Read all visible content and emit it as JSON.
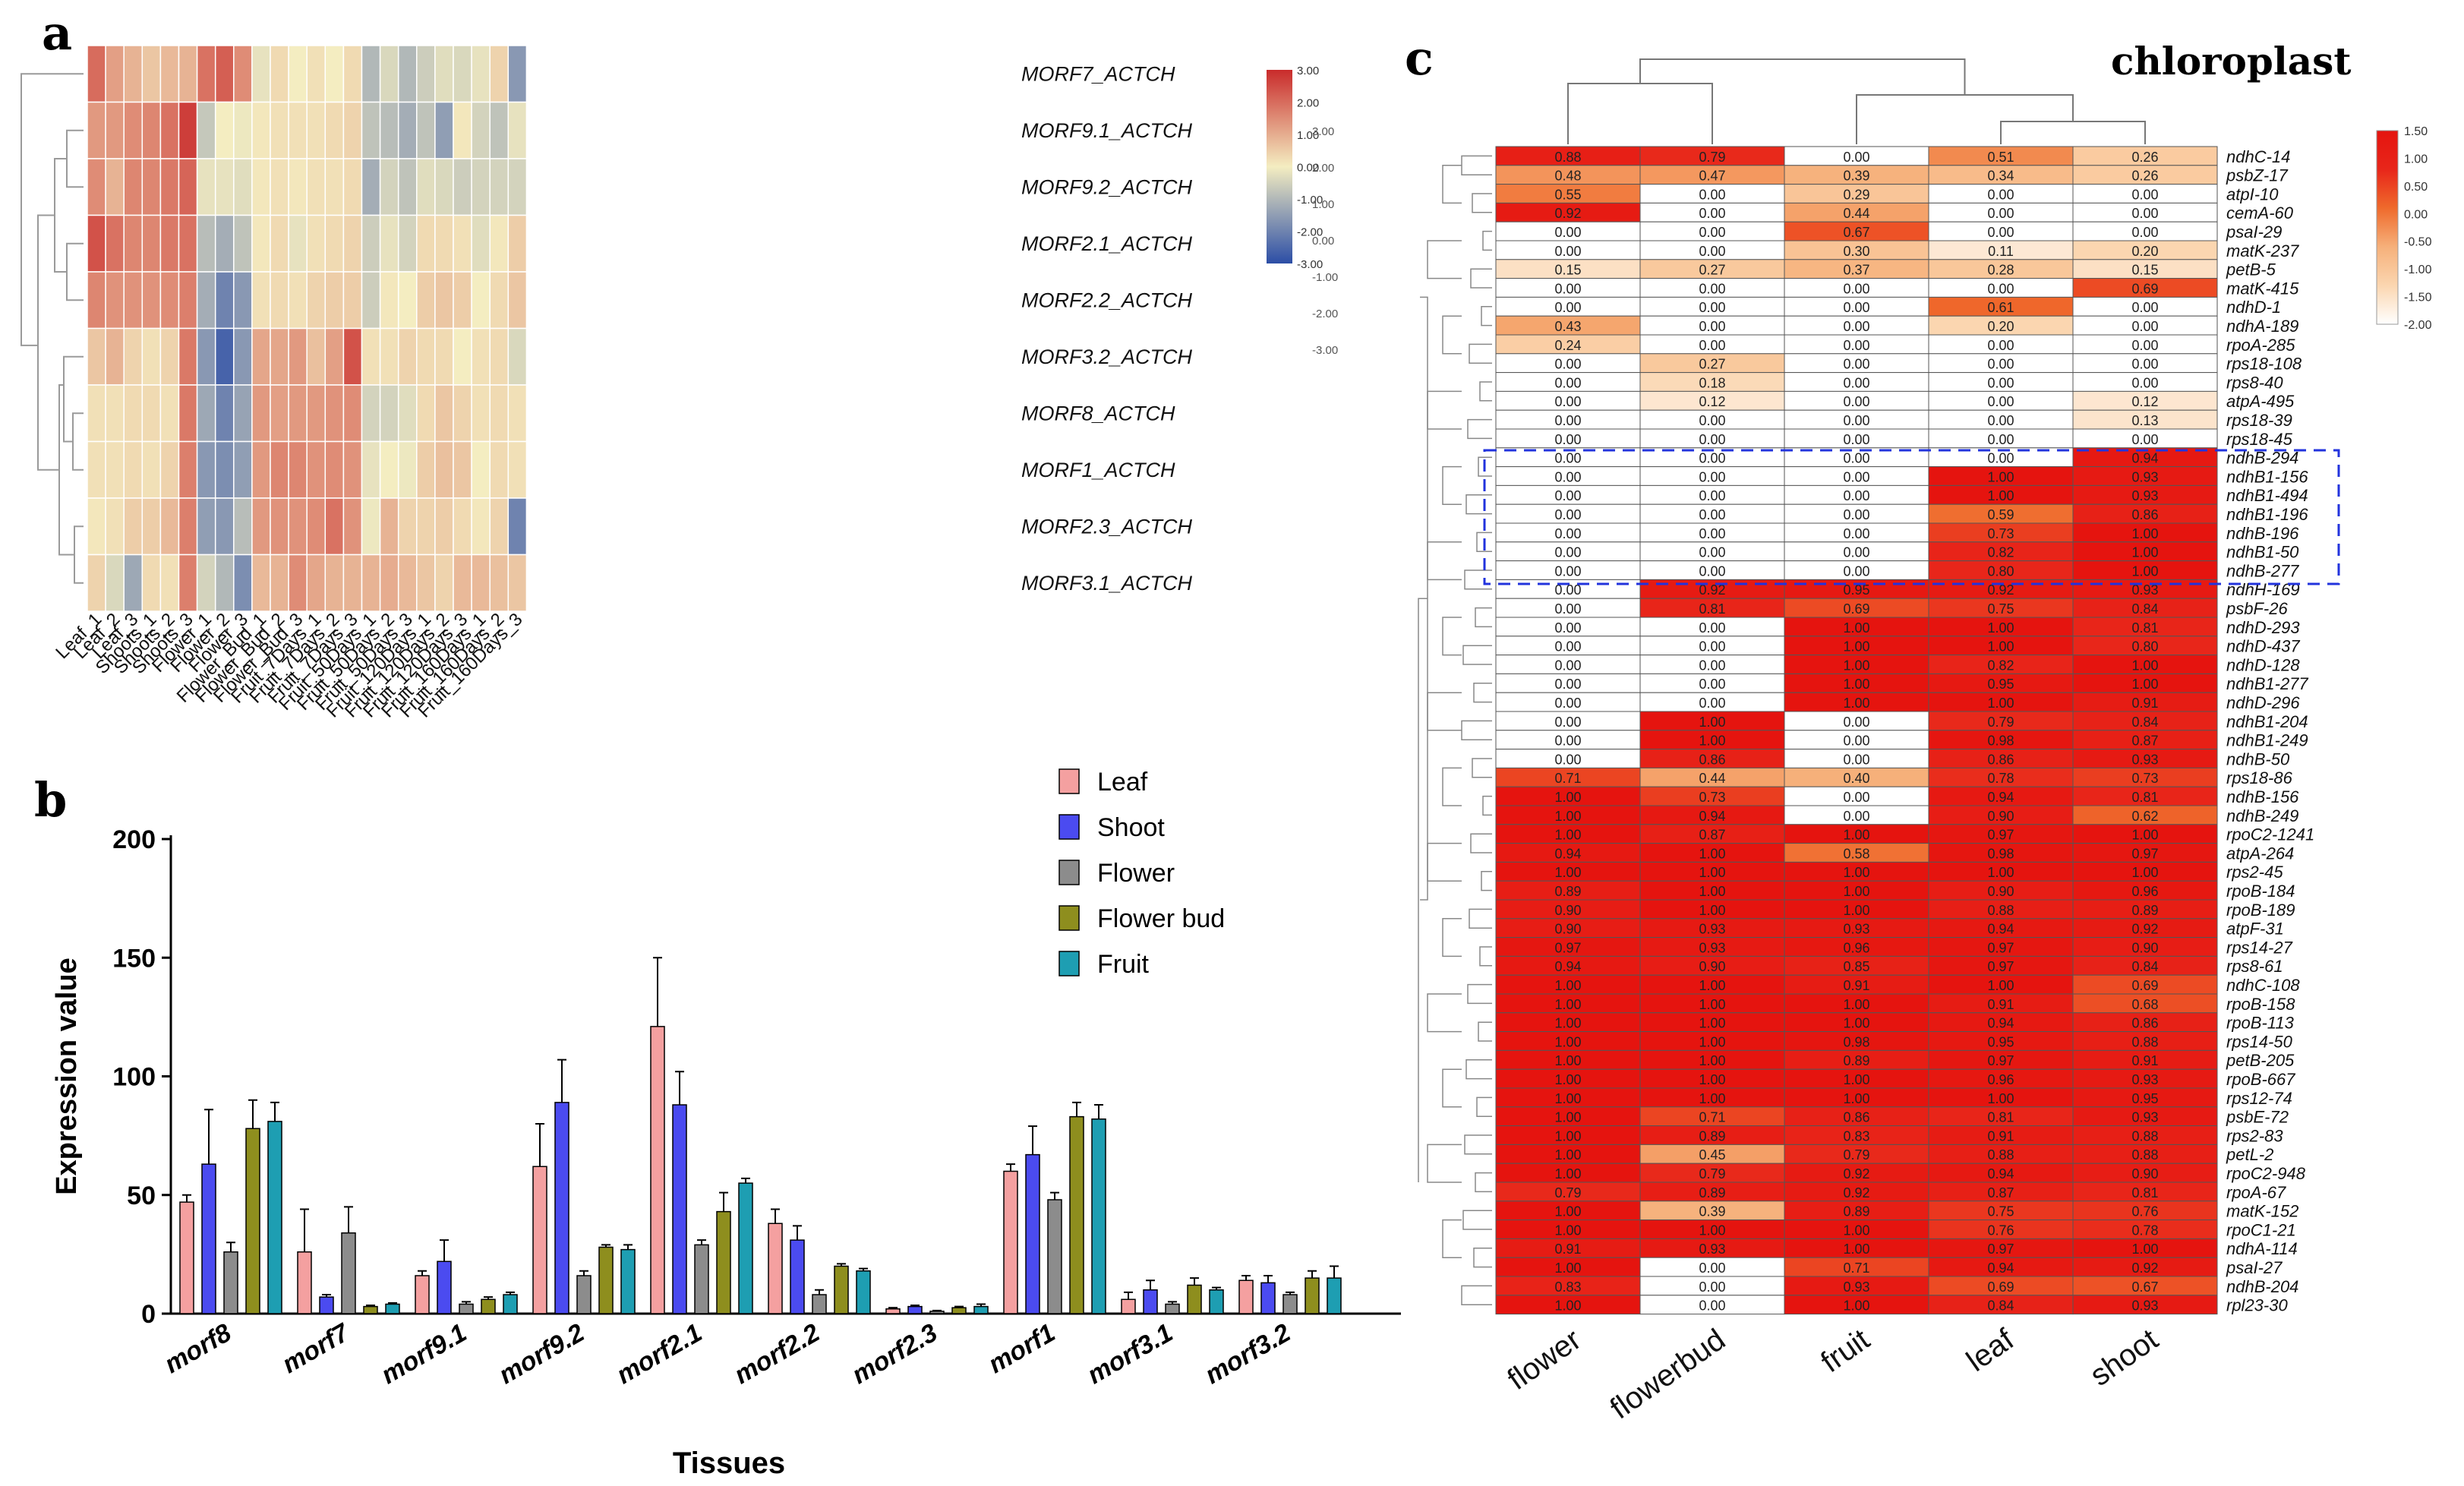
{
  "panel_labels": {
    "a": "a",
    "b": "b",
    "c": "c"
  },
  "chart_data": [
    {
      "type": "heatmap",
      "panel": "a",
      "row_labels": [
        "MORF7_ACTCH",
        "MORF9.1_ACTCH",
        "MORF9.2_ACTCH",
        "MORF2.1_ACTCH",
        "MORF2.2_ACTCH",
        "MORF3.2_ACTCH",
        "MORF8_ACTCH",
        "MORF1_ACTCH",
        "MORF2.3_ACTCH",
        "MORF3.1_ACTCH"
      ],
      "col_labels": [
        "Leaf_1",
        "Leaf_2",
        "Leaf_3",
        "Shoots_1",
        "Shoots_2",
        "Shoots_3",
        "Flower_1",
        "Flower_2",
        "Flower_3",
        "Flower_Bud_1",
        "Flower_Bud_2",
        "Flower_Bud_3",
        "Fruit_7Days_1",
        "Fruit_7Days_2",
        "Fruit_7Days_3",
        "Fruit_50Days_1",
        "Fruit_50Days_2",
        "Fruit_50Days_3",
        "Fruit_120Days_1",
        "Fruit_120Days_2",
        "Fruit_120Days_3",
        "Fruit_160Days_1",
        "Fruit_160Days_2",
        "Fruit_160Days_3"
      ],
      "values": [
        [
          2.0,
          1.2,
          0.9,
          0.6,
          0.8,
          0.9,
          1.9,
          2.2,
          1.5,
          -0.2,
          0.3,
          0.0,
          0.2,
          0.0,
          0.3,
          -1.0,
          -0.4,
          -1.0,
          -0.6,
          -0.3,
          -0.4,
          -0.2,
          0.4,
          -1.6
        ],
        [
          1.3,
          1.3,
          1.5,
          1.6,
          1.9,
          2.7,
          -0.7,
          0.0,
          -0.1,
          0.1,
          0.2,
          0.2,
          0.2,
          0.3,
          0.4,
          -0.8,
          -0.9,
          -1.2,
          -0.8,
          -1.5,
          0.1,
          -0.5,
          -0.8,
          -0.2
        ],
        [
          1.5,
          0.9,
          1.6,
          1.6,
          1.8,
          2.1,
          -0.2,
          -0.2,
          -0.3,
          0.1,
          0.2,
          0.1,
          0.2,
          0.2,
          0.3,
          -1.2,
          -0.5,
          -0.8,
          -0.3,
          -0.4,
          -0.6,
          -0.5,
          -0.5,
          -0.5
        ],
        [
          2.4,
          1.9,
          1.6,
          1.6,
          1.8,
          1.9,
          -0.9,
          -1.2,
          -0.8,
          0.1,
          0.3,
          -0.2,
          0.2,
          0.3,
          0.4,
          -0.6,
          -0.2,
          -0.5,
          0.3,
          0.3,
          0.2,
          -0.3,
          0.1,
          0.5
        ],
        [
          1.6,
          1.4,
          1.4,
          1.4,
          1.5,
          1.7,
          -1.2,
          -2.0,
          -1.6,
          0.2,
          0.3,
          0.2,
          0.4,
          0.5,
          0.5,
          -0.6,
          0.1,
          0.0,
          0.5,
          0.6,
          0.5,
          0.0,
          0.3,
          0.6
        ],
        [
          0.6,
          0.9,
          0.4,
          0.2,
          0.4,
          1.8,
          -1.6,
          -2.6,
          -1.6,
          1.1,
          1.1,
          1.3,
          0.7,
          1.2,
          2.4,
          0.2,
          0.2,
          0.4,
          0.3,
          0.3,
          0.0,
          0.2,
          0.3,
          -0.4
        ],
        [
          0.2,
          0.2,
          0.3,
          0.3,
          0.2,
          1.8,
          -1.3,
          -2.0,
          -1.4,
          1.3,
          1.2,
          1.3,
          1.3,
          1.4,
          1.5,
          -0.5,
          -0.5,
          -0.3,
          0.3,
          0.6,
          0.4,
          0.2,
          0.3,
          0.2
        ],
        [
          0.2,
          0.2,
          0.3,
          0.2,
          0.4,
          1.7,
          -1.6,
          -1.8,
          -1.5,
          1.3,
          1.6,
          1.6,
          1.4,
          1.5,
          1.4,
          -0.2,
          0.0,
          -0.1,
          0.5,
          0.7,
          0.6,
          0.0,
          0.3,
          0.2
        ],
        [
          0.1,
          0.2,
          0.5,
          0.5,
          0.8,
          1.7,
          -1.5,
          -1.6,
          -0.9,
          1.3,
          1.4,
          1.4,
          1.5,
          1.9,
          1.4,
          -0.1,
          0.9,
          0.4,
          0.4,
          0.5,
          0.3,
          0.1,
          0.4,
          -2.0
        ],
        [
          0.4,
          -0.4,
          -1.3,
          0.3,
          0.2,
          1.7,
          -0.5,
          -1.0,
          -1.8,
          0.8,
          0.9,
          1.5,
          1.1,
          0.9,
          0.9,
          0.9,
          1.0,
          0.8,
          0.6,
          0.4,
          0.8,
          0.8,
          0.7,
          0.6
        ]
      ],
      "color_scale": {
        "min": -3.0,
        "max": 3.0,
        "colors": [
          "#2c4ea6",
          "#f4edc1",
          "#c92b2b"
        ]
      },
      "legend_ticks": [
        "3.00",
        "2.00",
        "1.00",
        "0.00",
        "-1.00",
        "-2.00",
        "-3.00"
      ],
      "legend_ghost_ticks": [
        "3.00",
        "2.00",
        "1.00",
        "0.00",
        "-1.00",
        "-2.00",
        "-3.00"
      ]
    },
    {
      "type": "bar",
      "panel": "b",
      "categories": [
        "morf8",
        "morf7",
        "morf9.1",
        "morf9.2",
        "morf2.1",
        "morf2.2",
        "morf2.3",
        "morf1",
        "morf3.1",
        "morf3.2"
      ],
      "series": [
        {
          "name": "Leaf",
          "color": "#f4a0a0",
          "values": [
            47,
            26,
            16,
            62,
            121,
            38,
            2,
            60,
            6,
            14
          ],
          "errors": [
            3,
            18,
            2,
            18,
            29,
            6,
            0.5,
            3,
            3,
            2
          ]
        },
        {
          "name": "Shoot",
          "color": "#4b4bf0",
          "values": [
            63,
            7,
            22,
            89,
            88,
            31,
            3,
            67,
            10,
            13
          ],
          "errors": [
            23,
            1,
            9,
            18,
            14,
            6,
            0.5,
            12,
            4,
            3
          ]
        },
        {
          "name": "Flower",
          "color": "#8c8c8c",
          "values": [
            26,
            34,
            4,
            16,
            29,
            8,
            1,
            48,
            4,
            8
          ],
          "errors": [
            4,
            11,
            1,
            2,
            2,
            2,
            0.3,
            3,
            1,
            1
          ]
        },
        {
          "name": "Flower bud",
          "color": "#8e8e1e",
          "values": [
            78,
            3,
            6,
            28,
            43,
            20,
            2.5,
            83,
            12,
            15
          ],
          "errors": [
            12,
            0.5,
            1,
            1,
            8,
            1,
            0.5,
            6,
            3,
            3
          ]
        },
        {
          "name": "Fruit",
          "color": "#1e9eb2",
          "values": [
            81,
            4,
            8,
            27,
            55,
            18,
            3,
            82,
            10,
            15
          ],
          "errors": [
            8,
            0.5,
            1,
            2,
            2,
            1,
            1,
            6,
            1,
            5
          ]
        }
      ],
      "xlabel": "Tissues",
      "ylabel": "Expression value",
      "ylim": [
        0,
        200
      ],
      "yticks": [
        "0",
        "50",
        "100",
        "150",
        "200"
      ]
    },
    {
      "type": "heatmap",
      "panel": "c",
      "title": "chloroplast",
      "col_labels": [
        "flower",
        "flowerbud",
        "fruit",
        "leaf",
        "shoot"
      ],
      "row_labels": [
        "ndhC-14",
        "psbZ-17",
        "atpI-10",
        "cemA-60",
        "psaI-29",
        "matK-237",
        "petB-5",
        "matK-415",
        "ndhD-1",
        "ndhA-189",
        "rpoA-285",
        "rps18-108",
        "rps8-40",
        "atpA-495",
        "rps18-39",
        "rps18-45",
        "ndhB-294",
        "ndhB1-156",
        "ndhB1-494",
        "ndhB1-196",
        "ndhB-196",
        "ndhB1-50",
        "ndhB-277",
        "ndhH-169",
        "psbF-26",
        "ndhD-293",
        "ndhD-437",
        "ndhD-128",
        "ndhB1-277",
        "ndhD-296",
        "ndhB1-204",
        "ndhB1-249",
        "ndhB-50",
        "rps18-86",
        "ndhB-156",
        "ndhB-249",
        "rpoC2-1241",
        "atpA-264",
        "rps2-45",
        "rpoB-184",
        "rpoB-189",
        "atpF-31",
        "rps14-27",
        "rps8-61",
        "ndhC-108",
        "rpoB-158",
        "rpoB-113",
        "rps14-50",
        "petB-205",
        "rpoB-667",
        "rps12-74",
        "psbE-72",
        "rps2-83",
        "petL-2",
        "rpoC2-948",
        "rpoA-67",
        "matK-152",
        "rpoC1-21",
        "ndhA-114",
        "psaI-27",
        "ndhB-204",
        "rpl23-30"
      ],
      "values": [
        [
          0.88,
          0.79,
          0.0,
          0.51,
          0.26
        ],
        [
          0.48,
          0.47,
          0.39,
          0.34,
          0.26
        ],
        [
          0.55,
          0.0,
          0.29,
          0.0,
          0.0
        ],
        [
          0.92,
          0.0,
          0.44,
          0.0,
          0.0
        ],
        [
          0.0,
          0.0,
          0.67,
          0.0,
          0.0
        ],
        [
          0.0,
          0.0,
          0.3,
          0.11,
          0.2
        ],
        [
          0.15,
          0.27,
          0.37,
          0.28,
          0.15
        ],
        [
          0.0,
          0.0,
          0.0,
          0.0,
          0.69
        ],
        [
          0.0,
          0.0,
          0.0,
          0.61,
          0.0
        ],
        [
          0.43,
          0.0,
          0.0,
          0.2,
          0.0
        ],
        [
          0.24,
          0.0,
          0.0,
          0.0,
          0.0
        ],
        [
          0.0,
          0.27,
          0.0,
          0.0,
          0.0
        ],
        [
          0.0,
          0.18,
          0.0,
          0.0,
          0.0
        ],
        [
          0.0,
          0.12,
          0.0,
          0.0,
          0.12
        ],
        [
          0.0,
          0.0,
          0.0,
          0.0,
          0.13
        ],
        [
          0.0,
          0.0,
          0.0,
          0.0,
          0.0
        ],
        [
          0.0,
          0.0,
          0.0,
          0.0,
          0.94
        ],
        [
          0.0,
          0.0,
          0.0,
          1.0,
          0.93
        ],
        [
          0.0,
          0.0,
          0.0,
          1.0,
          0.93
        ],
        [
          0.0,
          0.0,
          0.0,
          0.59,
          0.86
        ],
        [
          0.0,
          0.0,
          0.0,
          0.73,
          1.0
        ],
        [
          0.0,
          0.0,
          0.0,
          0.82,
          1.0
        ],
        [
          0.0,
          0.0,
          0.0,
          0.8,
          1.0
        ],
        [
          0.0,
          0.92,
          0.95,
          0.92,
          0.93
        ],
        [
          0.0,
          0.81,
          0.69,
          0.75,
          0.84
        ],
        [
          0.0,
          0.0,
          1.0,
          1.0,
          0.81
        ],
        [
          0.0,
          0.0,
          1.0,
          1.0,
          0.8
        ],
        [
          0.0,
          0.0,
          1.0,
          0.82,
          1.0
        ],
        [
          0.0,
          0.0,
          1.0,
          0.95,
          1.0
        ],
        [
          0.0,
          0.0,
          1.0,
          1.0,
          0.91
        ],
        [
          0.0,
          1.0,
          0.0,
          0.79,
          0.84
        ],
        [
          0.0,
          1.0,
          0.0,
          0.98,
          0.87
        ],
        [
          0.0,
          0.86,
          0.0,
          0.86,
          0.93
        ],
        [
          0.71,
          0.44,
          0.4,
          0.78,
          0.73
        ],
        [
          1.0,
          0.73,
          0.0,
          0.94,
          0.81
        ],
        [
          1.0,
          0.94,
          0.0,
          0.9,
          0.62
        ],
        [
          1.0,
          0.87,
          1.0,
          0.97,
          1.0
        ],
        [
          0.94,
          1.0,
          0.58,
          0.98,
          0.97
        ],
        [
          1.0,
          1.0,
          1.0,
          1.0,
          1.0
        ],
        [
          0.89,
          1.0,
          1.0,
          0.9,
          0.96
        ],
        [
          0.9,
          1.0,
          1.0,
          0.88,
          0.89
        ],
        [
          0.9,
          0.93,
          0.93,
          0.94,
          0.92
        ],
        [
          0.97,
          0.93,
          0.96,
          0.97,
          0.9
        ],
        [
          0.94,
          0.9,
          0.85,
          0.97,
          0.84
        ],
        [
          1.0,
          1.0,
          0.91,
          1.0,
          0.69
        ],
        [
          1.0,
          1.0,
          1.0,
          0.91,
          0.68
        ],
        [
          1.0,
          1.0,
          1.0,
          0.94,
          0.86
        ],
        [
          1.0,
          1.0,
          0.98,
          0.95,
          0.88
        ],
        [
          1.0,
          1.0,
          0.89,
          0.97,
          0.91
        ],
        [
          1.0,
          1.0,
          1.0,
          0.96,
          0.93
        ],
        [
          1.0,
          1.0,
          1.0,
          1.0,
          0.95
        ],
        [
          1.0,
          0.71,
          0.86,
          0.81,
          0.93
        ],
        [
          1.0,
          0.89,
          0.83,
          0.91,
          0.88
        ],
        [
          1.0,
          0.45,
          0.79,
          0.88,
          0.88
        ],
        [
          1.0,
          0.79,
          0.92,
          0.94,
          0.9
        ],
        [
          0.79,
          0.89,
          0.92,
          0.87,
          0.81
        ],
        [
          1.0,
          0.39,
          0.89,
          0.75,
          0.76
        ],
        [
          1.0,
          1.0,
          1.0,
          0.76,
          0.78
        ],
        [
          0.91,
          0.93,
          1.0,
          0.97,
          1.0
        ],
        [
          1.0,
          0.0,
          0.71,
          0.94,
          0.92
        ],
        [
          0.83,
          0.0,
          0.93,
          0.69,
          0.67
        ],
        [
          1.0,
          0.0,
          1.0,
          0.84,
          0.93
        ]
      ],
      "highlight_rows": [
        16,
        22
      ],
      "legend_ticks": [
        "1.50",
        "1.00",
        "0.50",
        "0.00",
        "-0.50",
        "-1.00",
        "-1.50",
        "-2.00"
      ],
      "color_scale": {
        "min": 0.0,
        "max": 1.0,
        "colors": [
          "#ffffff",
          "#fbd6b0",
          "#f6b07a",
          "#ef6a2c",
          "#e8261a",
          "#e5140f"
        ]
      }
    }
  ]
}
